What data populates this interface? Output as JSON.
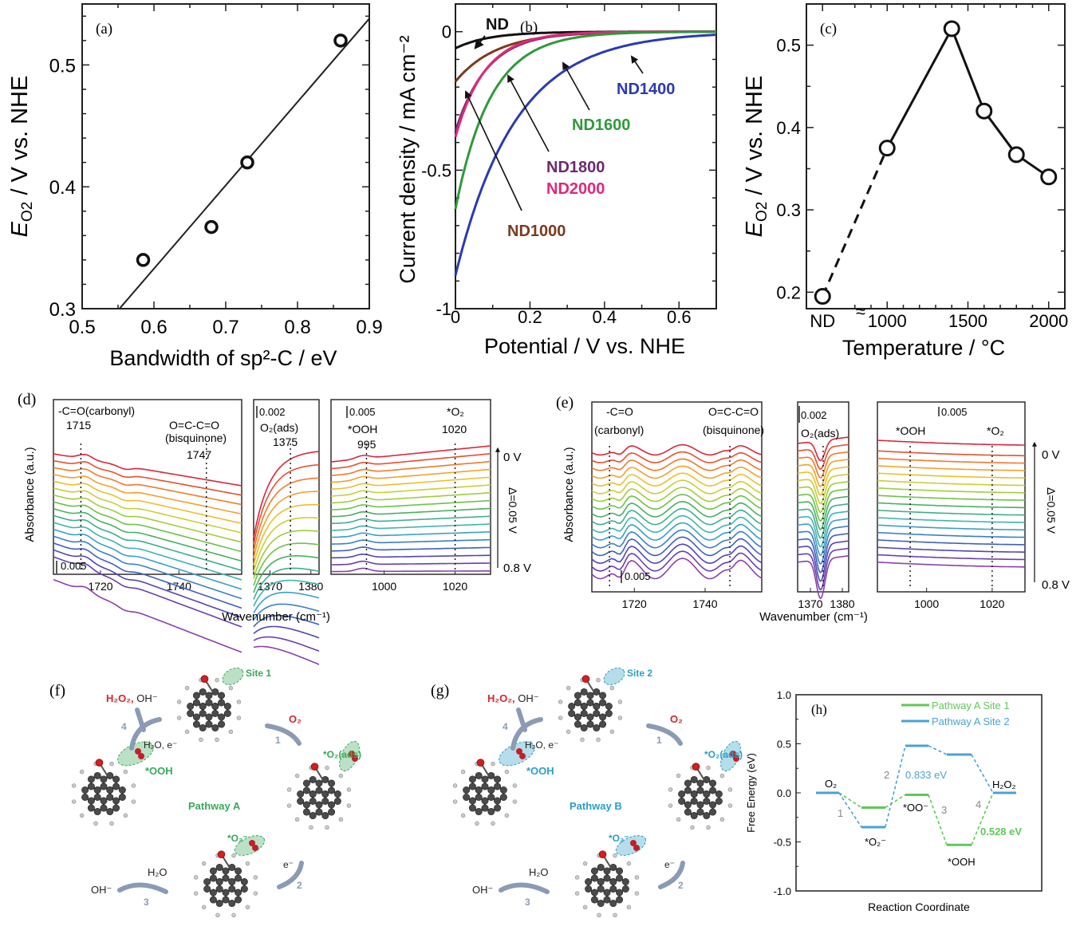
{
  "figure": {
    "panels": [
      "(a)",
      "(b)",
      "(c)",
      "(d)",
      "(e)",
      "(f)",
      "(g)",
      "(h)"
    ]
  },
  "chart_data": [
    {
      "id": "a",
      "panel_label": "(a)",
      "type": "scatter",
      "title": "",
      "xlabel": "Bandwidth of sp²-C / eV",
      "ylabel": "E_O2 / V vs. NHE",
      "ylabel_main": "E",
      "ylabel_sub": "O2",
      "ylabel_rest": " / V vs. NHE",
      "xlim": [
        0.5,
        0.9
      ],
      "ylim": [
        0.3,
        0.55
      ],
      "xticks": [
        0.5,
        0.6,
        0.7,
        0.8,
        0.9
      ],
      "xtick_labels": [
        "0.5",
        "0.6",
        "0.7",
        "0.8",
        "0.9"
      ],
      "yticks": [
        0.3,
        0.4,
        0.5
      ],
      "ytick_labels": [
        "0.3",
        "0.4",
        "0.5"
      ],
      "points": [
        {
          "x": 0.585,
          "y": 0.34
        },
        {
          "x": 0.68,
          "y": 0.367
        },
        {
          "x": 0.73,
          "y": 0.42
        },
        {
          "x": 0.86,
          "y": 0.52
        }
      ],
      "fit_line": {
        "x": [
          0.552,
          0.9
        ],
        "y": [
          0.3,
          0.538
        ]
      },
      "grid": false
    },
    {
      "id": "b",
      "panel_label": "(b)",
      "type": "line",
      "xlabel": "Potential / V vs. NHE",
      "ylabel": "Current density / mA cm⁻²",
      "xlim": [
        0,
        0.7
      ],
      "ylim": [
        -1,
        0.1
      ],
      "xticks": [
        0,
        0.2,
        0.4,
        0.6
      ],
      "xtick_labels": [
        "0",
        "0.2",
        "0.4",
        "0.6"
      ],
      "yticks": [
        -1,
        -0.5,
        0
      ],
      "ytick_labels": [
        "-1",
        "-0.5",
        "0"
      ],
      "series": [
        {
          "name": "ND",
          "color": "#111111",
          "j0": -0.06,
          "decay": 0.09
        },
        {
          "name": "ND1000",
          "color": "#7a3b1e",
          "j0": -0.18,
          "decay": 0.11
        },
        {
          "name": "ND1800",
          "color": "#6b2b6b",
          "j0": -0.36,
          "decay": 0.085
        },
        {
          "name": "ND2000",
          "color": "#e0287a",
          "j0": -0.38,
          "decay": 0.08
        },
        {
          "name": "ND1600",
          "color": "#2e9a3a",
          "j0": -0.64,
          "decay": 0.095
        },
        {
          "name": "ND1400",
          "color": "#2b3ab0",
          "j0": -0.88,
          "decay": 0.16
        }
      ],
      "annotations": [
        {
          "text": "ND",
          "color": "#111111"
        },
        {
          "text": "ND1400",
          "color": "#2b3ab0"
        },
        {
          "text": "ND1600",
          "color": "#2e9a3a"
        },
        {
          "text": "ND1800",
          "color": "#6b2b6b"
        },
        {
          "text": "ND2000",
          "color": "#e0287a"
        },
        {
          "text": "ND1000",
          "color": "#7a3b1e"
        }
      ],
      "grid": false
    },
    {
      "id": "c",
      "panel_label": "(c)",
      "type": "line",
      "xlabel": "Temperature / °C",
      "ylabel": "E_O2 / V vs. NHE",
      "ylabel_main": "E",
      "ylabel_sub": "O2",
      "ylabel_rest": " / V vs. NHE",
      "xlim": [
        500,
        2100
      ],
      "ylim": [
        0.18,
        0.55
      ],
      "xtick_labels": [
        "ND",
        "1000",
        "1500",
        "2000"
      ],
      "xticks": [
        600,
        1000,
        1500,
        2000
      ],
      "yticks": [
        0.2,
        0.3,
        0.4,
        0.5
      ],
      "ytick_labels": [
        "0.2",
        "0.3",
        "0.4",
        "0.5"
      ],
      "axis_break": "≈ between ND and 1000",
      "points": [
        {
          "label": "ND",
          "x": 600,
          "y": 0.195
        },
        {
          "label": "1000",
          "x": 1000,
          "y": 0.375
        },
        {
          "label": "1400",
          "x": 1400,
          "y": 0.52
        },
        {
          "label": "1600",
          "x": 1600,
          "y": 0.42
        },
        {
          "label": "1800",
          "x": 1800,
          "y": 0.367
        },
        {
          "label": "2000",
          "x": 2000,
          "y": 0.34
        }
      ],
      "dashed_segment": [
        0,
        1
      ],
      "grid": false
    },
    {
      "id": "d",
      "panel_label": "(d)",
      "type": "line",
      "xlabel": "Wavenumber (cm⁻¹)",
      "ylabel": "Absorbance (a.u.)",
      "subpanels": [
        {
          "xlim": [
            1708,
            1756
          ],
          "xticks": [
            1720,
            1740
          ],
          "xtick_labels": [
            "1720",
            "1740"
          ],
          "scale_bar": "0.005",
          "markers": [
            {
              "x": 1715,
              "label_top": "-C=O(carbonyl)",
              "label_val": "1715"
            },
            {
              "x": 1747,
              "label_top": "O=C-C=O",
              "label_mid": "(bisquinone)",
              "label_val": "1747"
            }
          ]
        },
        {
          "xlim": [
            1366,
            1382
          ],
          "xticks": [
            1370,
            1380
          ],
          "xtick_labels": [
            "1370",
            "1380"
          ],
          "scale_bar": "0.002",
          "markers": [
            {
              "x": 1375,
              "label_top": "O₂(ads)",
              "label_val": "1375"
            }
          ]
        },
        {
          "xlim": [
            985,
            1030
          ],
          "xticks": [
            1000,
            1020
          ],
          "xtick_labels": [
            "1000",
            "1020"
          ],
          "scale_bar": "0.005",
          "markers": [
            {
              "x": 995,
              "label_top": "*OOH",
              "label_val": "995"
            },
            {
              "x": 1020,
              "label_top": "*O₂",
              "label_val": "1020"
            }
          ]
        }
      ],
      "potential_top": "0 V",
      "potential_bottom": "0.8 V",
      "step_label": "Δ=0.05 V",
      "n_spectra": 17,
      "grid": false
    },
    {
      "id": "e",
      "panel_label": "(e)",
      "type": "line",
      "xlabel": "Wavenumber (cm⁻¹)",
      "ylabel": "Absorbance (a.u.)",
      "subpanels": [
        {
          "xlim": [
            1708,
            1756
          ],
          "xticks": [
            1720,
            1740
          ],
          "xtick_labels": [
            "1720",
            "1740"
          ],
          "scale_bar": "0.005",
          "markers": [
            {
              "x": 1713,
              "label_top": "-C=O",
              "label_mid": "(carbonyl)"
            },
            {
              "x": 1747,
              "label_top": "O=C-C=O",
              "label_mid": "(bisquinone)"
            }
          ]
        },
        {
          "xlim": [
            1366,
            1382
          ],
          "xticks": [
            1370,
            1380
          ],
          "xtick_labels": [
            "1370",
            "1380"
          ],
          "scale_bar": "0.002",
          "markers": [
            {
              "x": 1374,
              "label_top": "O₂(ads)"
            }
          ]
        },
        {
          "xlim": [
            985,
            1030
          ],
          "xticks": [
            1000,
            1020
          ],
          "xtick_labels": [
            "1000",
            "1020"
          ],
          "scale_bar": "0.005",
          "markers": [
            {
              "x": 995,
              "label_top": "*OOH"
            },
            {
              "x": 1020,
              "label_top": "*O₂"
            }
          ]
        }
      ],
      "potential_top": "0 V",
      "potential_bottom": "0.8 V",
      "step_label": "Δ=0.05 V",
      "n_spectra": 17,
      "grid": false
    },
    {
      "id": "h",
      "panel_label": "(h)",
      "type": "line",
      "xlabel": "Reaction Coordinate",
      "ylabel": "Free Energy (eV)",
      "ylim": [
        -1.0,
        1.0
      ],
      "yticks": [
        -1.0,
        -0.5,
        0.0,
        0.5,
        1.0
      ],
      "ytick_labels": [
        "-1.0",
        "-0.5",
        "0.0",
        "0.5",
        "1.0"
      ],
      "states": [
        "O₂",
        "*O₂⁻",
        "*OO⁻",
        "*OOH",
        "H₂O₂"
      ],
      "series": [
        {
          "name": "Pathway A Site 1",
          "color": "#5fc85a",
          "values": [
            0.0,
            -0.15,
            -0.02,
            -0.53,
            0.0
          ]
        },
        {
          "name": "Pathway A Site 2",
          "color": "#4aa3cf",
          "values": [
            0.0,
            -0.35,
            0.48,
            0.39,
            0.0
          ]
        }
      ],
      "step_numbers": [
        "1",
        "2",
        "3",
        "4"
      ],
      "annotations": [
        {
          "text": "0.833 eV",
          "color": "#4aa3cf"
        },
        {
          "text": "0.528 eV",
          "color": "#5fc85a"
        }
      ],
      "state_labels": {
        "o2": "O₂",
        "o2minus": "*O₂⁻",
        "oominus": "*OO⁻",
        "ooh": "*OOH",
        "h2o2": "H₂O₂"
      },
      "legend_position": "top-right",
      "grid": false
    }
  ],
  "schemes": {
    "f": {
      "panel_label": "(f)",
      "center_label": "Pathway A",
      "site_label": "Site 1",
      "accent": "#3aa85a",
      "products": {
        "h2o2": "H₂O₂,",
        "oh": " OH⁻"
      },
      "step1_reagent": "O₂",
      "step2_reagent": "e⁻",
      "step3_reagent": "H₂O",
      "step3_product": "OH⁻",
      "step4_reagent": "H₂O, e⁻",
      "intermediates": {
        "ads": "*O₂(ads)",
        "superoxide": "*O₂⁻",
        "ooh": "*OOH"
      },
      "step_numbers": [
        "1",
        "2",
        "3",
        "4"
      ]
    },
    "g": {
      "panel_label": "(g)",
      "center_label": "Pathway B",
      "site_label": "Site 2",
      "accent": "#2a9fc4",
      "products": {
        "h2o2": "H₂O₂,",
        "oh": " OH⁻"
      },
      "step1_reagent": "O₂",
      "step2_reagent": "e⁻",
      "step3_reagent": "H₂O",
      "step3_product": "OH⁻",
      "step4_reagent": "H₂O, e⁻",
      "intermediates": {
        "ads": "*O₂(ads)",
        "superoxide": "*O₂⁻",
        "ooh": "*OOH"
      },
      "step_numbers": [
        "1",
        "2",
        "3",
        "4"
      ]
    }
  }
}
